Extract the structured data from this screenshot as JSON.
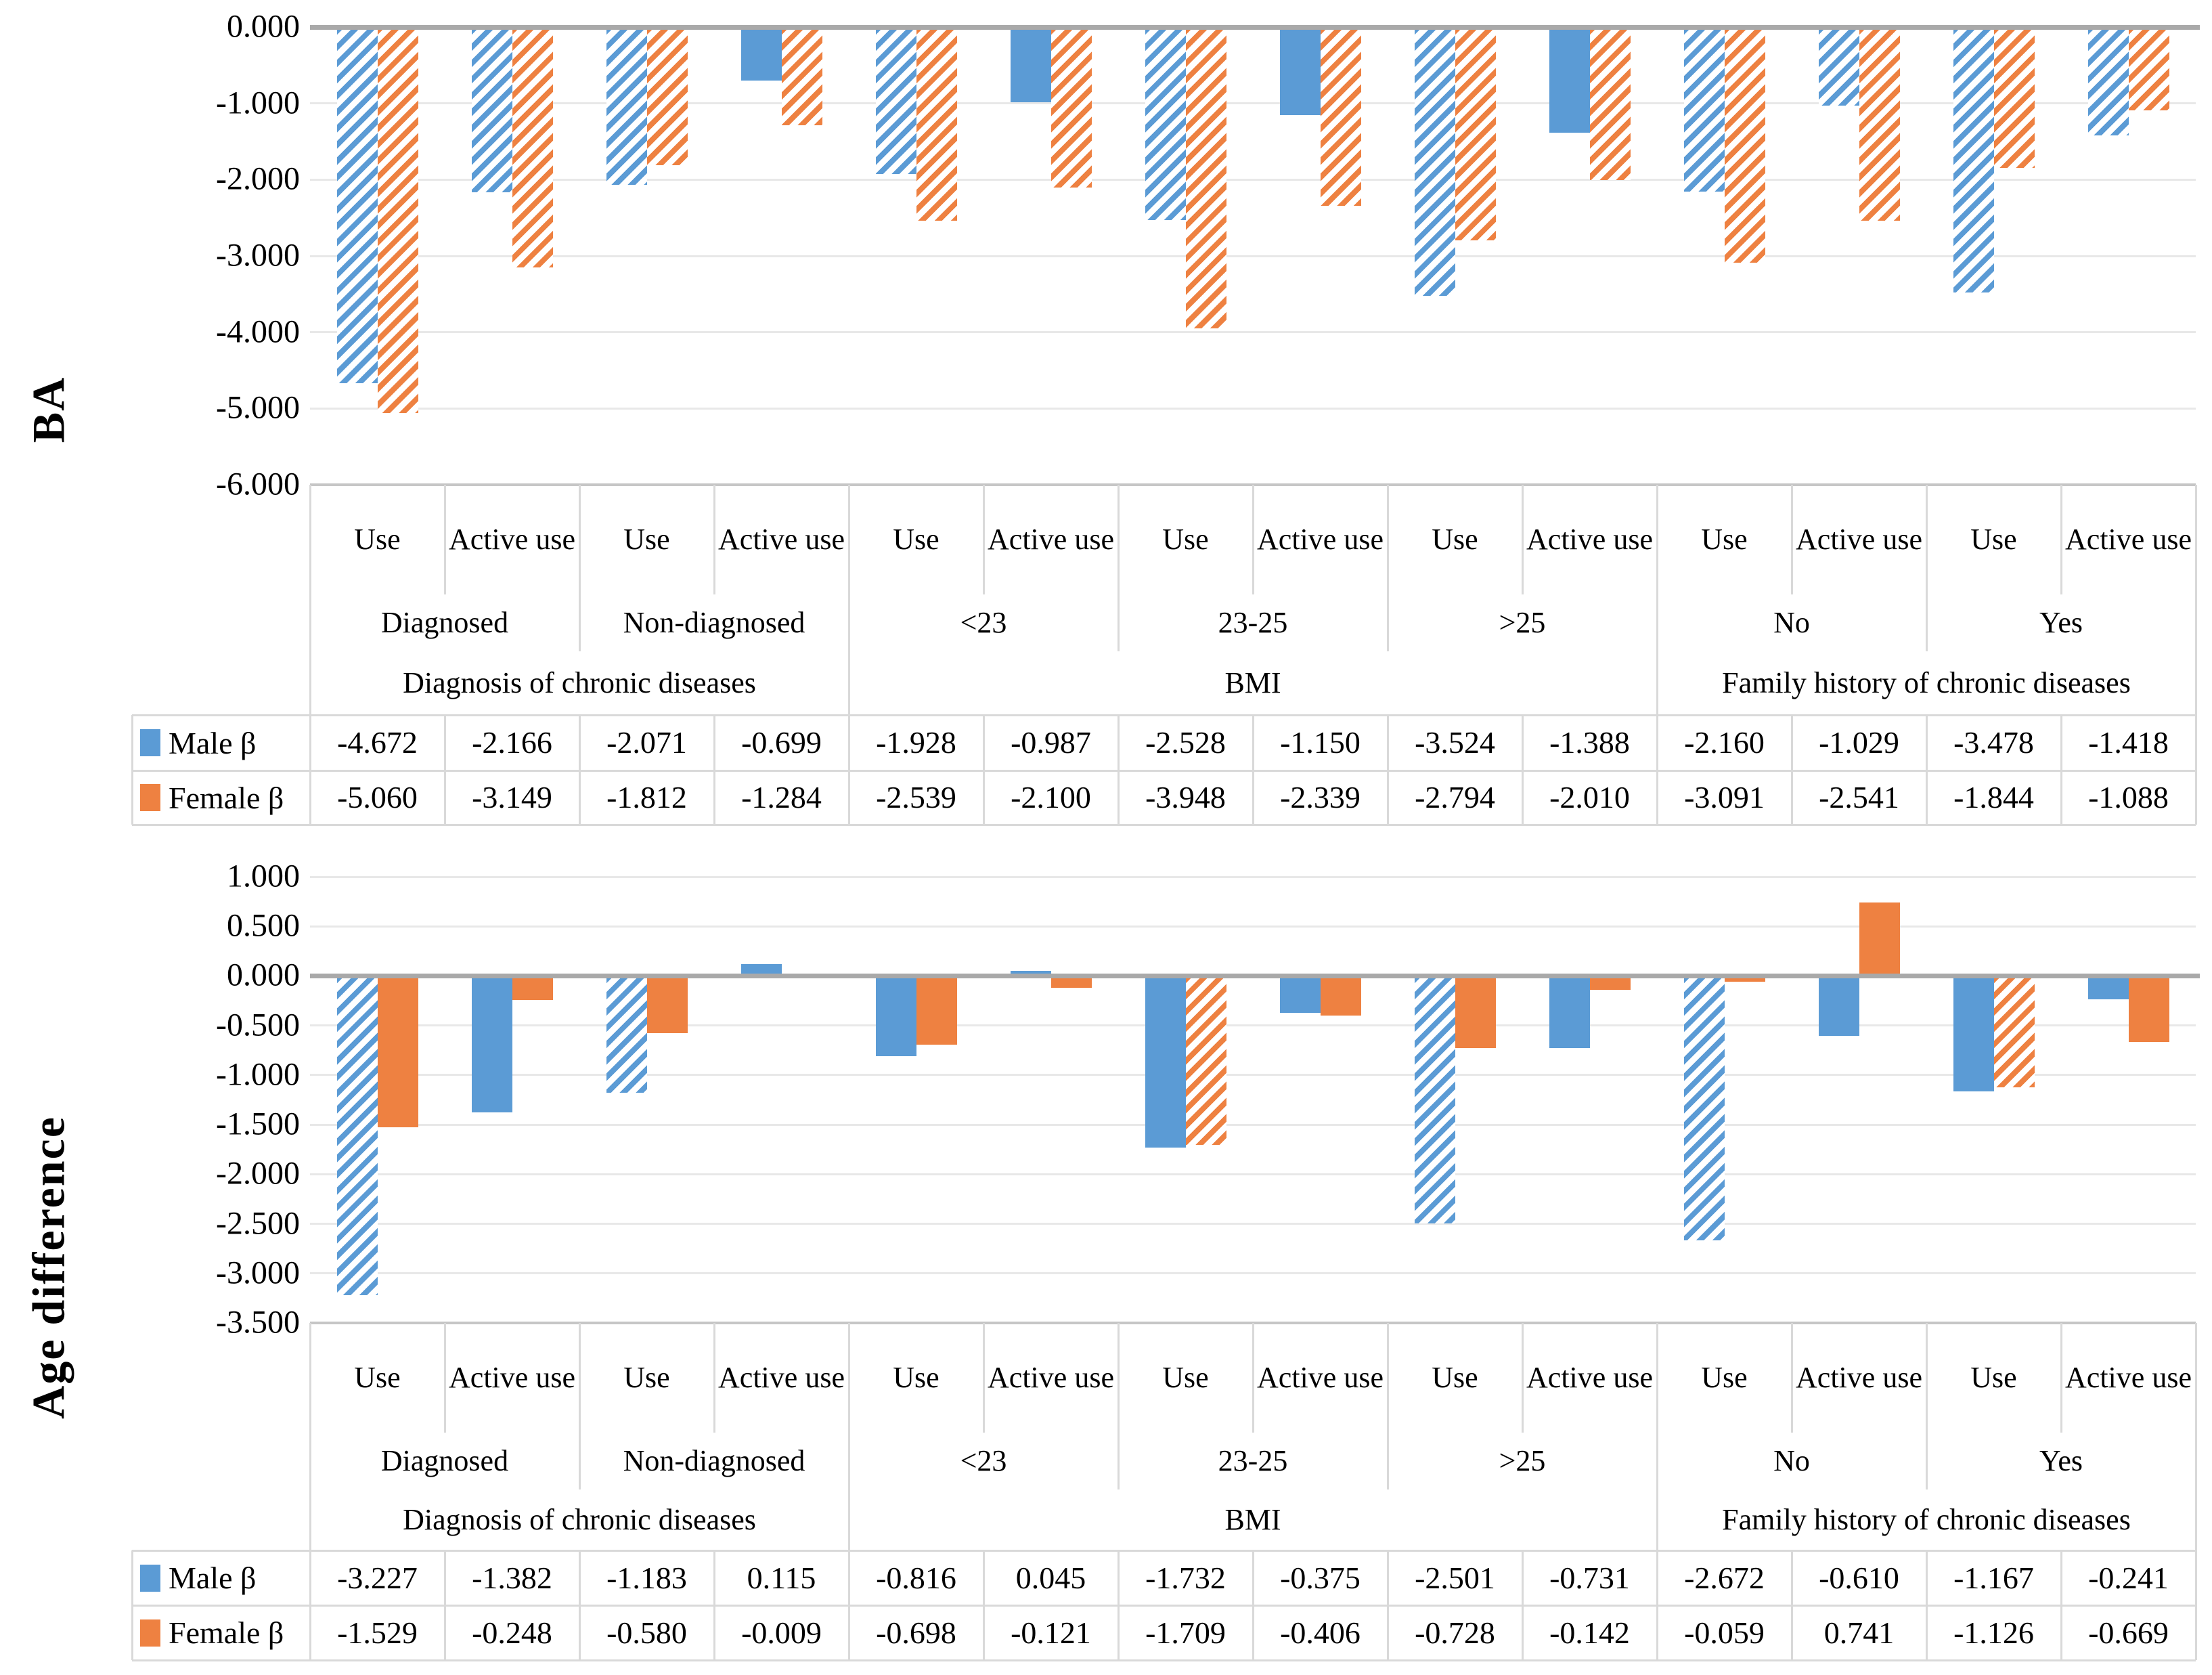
{
  "figure": {
    "background": "#FFFFFF",
    "colors": {
      "male": "#5B9BD5",
      "female": "#EE8141",
      "gridline": "#E8E8E8",
      "zero_axis": "#A9A9A9",
      "table_border": "#D9D9D9",
      "text": "#000000"
    },
    "series_labels": {
      "male": "Male β",
      "female": "Female β"
    }
  },
  "category_axis": {
    "leaf_labels": [
      "Use",
      "Active use",
      "Use",
      "Active use",
      "Use",
      "Active use",
      "Use",
      "Active use",
      "Use",
      "Active use",
      "Use",
      "Active use",
      "Use",
      "Active use"
    ],
    "subgroups": [
      {
        "label": "Diagnosed",
        "span": 2
      },
      {
        "label": "Non-diagnosed",
        "span": 2
      },
      {
        "label": "<23",
        "span": 2
      },
      {
        "label": "23-25",
        "span": 2
      },
      {
        "label": ">25",
        "span": 2
      },
      {
        "label": "No",
        "span": 2
      },
      {
        "label": "Yes",
        "span": 2
      }
    ],
    "groups": [
      {
        "label": "Diagnosis of chronic diseases",
        "span": 4
      },
      {
        "label": "BMI",
        "span": 6
      },
      {
        "label": "Family history of chronic diseases",
        "span": 4
      }
    ]
  },
  "chart_data": [
    {
      "type": "bar",
      "title": "BA",
      "ylabel": "BA",
      "ylim": [
        -6,
        0
      ],
      "ytick_step": 1.0,
      "ytick_labels": [
        "0.000",
        "-1.000",
        "-2.000",
        "-3.000",
        "-4.000",
        "-5.000",
        "-6.000"
      ],
      "grid": true,
      "legend_position": "table-left",
      "categories": [
        "Diagnosed Use",
        "Diagnosed Active use",
        "Non-diagnosed Use",
        "Non-diagnosed Active use",
        "<23 Use",
        "<23 Active use",
        "23-25 Use",
        "23-25 Active use",
        ">25 Use",
        ">25 Active use",
        "No Use",
        "No Active use",
        "Yes Use",
        "Yes Active use"
      ],
      "series": [
        {
          "name": "Male β",
          "values": [
            -4.672,
            -2.166,
            -2.071,
            -0.699,
            -1.928,
            -0.987,
            -2.528,
            -1.15,
            -3.524,
            -1.388,
            -2.16,
            -1.029,
            -3.478,
            -1.418
          ],
          "hatched": [
            true,
            true,
            true,
            false,
            true,
            false,
            true,
            false,
            true,
            false,
            true,
            true,
            true,
            true
          ]
        },
        {
          "name": "Female β",
          "values": [
            -5.06,
            -3.149,
            -1.812,
            -1.284,
            -2.539,
            -2.1,
            -3.948,
            -2.339,
            -2.794,
            -2.01,
            -3.091,
            -2.541,
            -1.844,
            -1.088
          ],
          "hatched": [
            true,
            true,
            true,
            true,
            true,
            true,
            true,
            true,
            true,
            true,
            true,
            true,
            true,
            true
          ]
        }
      ]
    },
    {
      "type": "bar",
      "title": "Age difference",
      "ylabel": "Age difference",
      "ylim": [
        -3.5,
        1
      ],
      "ytick_step": 0.5,
      "ytick_labels": [
        "1.000",
        "0.500",
        "0.000",
        "-0.500",
        "-1.000",
        "-1.500",
        "-2.000",
        "-2.500",
        "-3.000",
        "-3.500"
      ],
      "grid": true,
      "legend_position": "table-left",
      "categories": [
        "Diagnosed Use",
        "Diagnosed Active use",
        "Non-diagnosed Use",
        "Non-diagnosed Active use",
        "<23 Use",
        "<23 Active use",
        "23-25 Use",
        "23-25 Active use",
        ">25 Use",
        ">25 Active use",
        "No Use",
        "No Active use",
        "Yes Use",
        "Yes Active use"
      ],
      "series": [
        {
          "name": "Male β",
          "values": [
            -3.227,
            -1.382,
            -1.183,
            0.115,
            -0.816,
            0.045,
            -1.732,
            -0.375,
            -2.501,
            -0.731,
            -2.672,
            -0.61,
            -1.167,
            -0.241
          ],
          "hatched": [
            true,
            false,
            true,
            false,
            false,
            false,
            false,
            false,
            true,
            false,
            true,
            false,
            false,
            false
          ]
        },
        {
          "name": "Female β",
          "values": [
            -1.529,
            -0.248,
            -0.58,
            -0.009,
            -0.698,
            -0.121,
            -1.709,
            -0.406,
            -0.728,
            -0.142,
            -0.059,
            0.741,
            -1.126,
            -0.669
          ],
          "hatched": [
            false,
            false,
            false,
            false,
            false,
            false,
            true,
            false,
            false,
            false,
            false,
            false,
            true,
            false
          ]
        }
      ]
    }
  ]
}
